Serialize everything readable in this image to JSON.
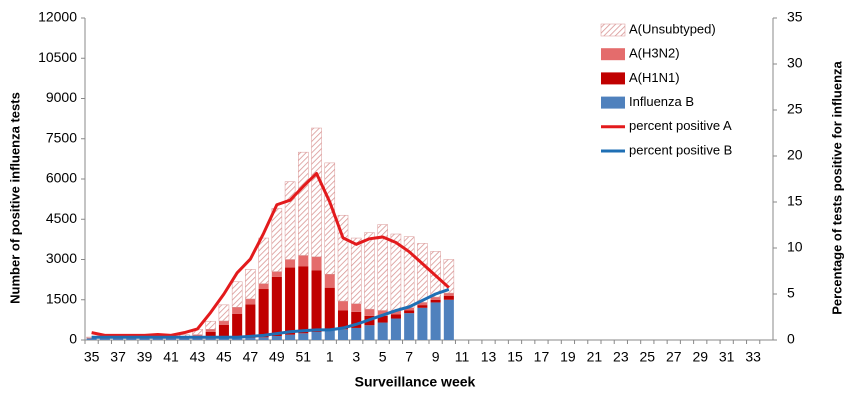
{
  "chart_data": {
    "type": "bar",
    "x_label": "Surveillance  week",
    "y_label": "Number of positive influenza tests",
    "y2_label": "Percentage of tests positive for influenza",
    "categories": [
      "35",
      null,
      "37",
      null,
      "39",
      null,
      "41",
      null,
      "43",
      null,
      "45",
      null,
      "47",
      null,
      "49",
      null,
      "51",
      null,
      "1",
      null,
      "3",
      null,
      "5",
      null,
      "7",
      null,
      "9",
      null,
      "11",
      null,
      "13",
      null,
      "15",
      null,
      "17",
      null,
      "19",
      null,
      "21",
      null,
      "23",
      null,
      "25",
      null,
      "27",
      null,
      "29",
      null,
      "31",
      null,
      "33",
      null
    ],
    "ylim": [
      0,
      12000
    ],
    "yticks": [
      0,
      1500,
      3000,
      4500,
      6000,
      7500,
      9000,
      10500,
      12000
    ],
    "y2lim": [
      0,
      35
    ],
    "y2ticks": [
      0,
      5,
      10,
      15,
      20,
      25,
      30,
      35
    ],
    "legend": "top-right",
    "series": [
      {
        "name": "A(Unsubtyped)",
        "type": "bar",
        "pattern": "hatch",
        "color": "#d99594",
        "values": [
          30,
          20,
          20,
          20,
          20,
          30,
          40,
          100,
          200,
          300,
          600,
          950,
          1100,
          1700,
          2350,
          2900,
          3850,
          4800,
          4150,
          3200,
          2450,
          2850,
          3200,
          2850,
          2650,
          2200,
          1700,
          1250,
          null,
          null,
          null,
          null,
          null,
          null,
          null,
          null,
          null,
          null,
          null,
          null,
          null,
          null,
          null,
          null,
          null,
          null,
          null,
          null,
          null,
          null,
          null,
          null
        ]
      },
      {
        "name": "A(H3N2)",
        "type": "bar",
        "color": "#e46c6c",
        "values": [
          10,
          10,
          10,
          10,
          10,
          10,
          10,
          20,
          50,
          100,
          150,
          250,
          200,
          200,
          200,
          300,
          400,
          500,
          500,
          350,
          300,
          250,
          200,
          150,
          100,
          100,
          100,
          100,
          null,
          null,
          null,
          null,
          null,
          null,
          null,
          null,
          null,
          null,
          null,
          null,
          null,
          null,
          null,
          null,
          null,
          null,
          null,
          null,
          null,
          null,
          null,
          null
        ]
      },
      {
        "name": "A(H1N1)",
        "type": "bar",
        "color": "#c00000",
        "values": [
          10,
          10,
          10,
          10,
          10,
          10,
          10,
          30,
          100,
          250,
          500,
          900,
          1250,
          1800,
          2200,
          2500,
          2500,
          2300,
          1600,
          700,
          600,
          350,
          250,
          150,
          100,
          100,
          100,
          150,
          null,
          null,
          null,
          null,
          null,
          null,
          null,
          null,
          null,
          null,
          null,
          null,
          null,
          null,
          null,
          null,
          null,
          null,
          null,
          null,
          null,
          null,
          null,
          null
        ]
      },
      {
        "name": "Influenza B",
        "type": "bar",
        "color": "#4f81bd",
        "values": [
          60,
          50,
          50,
          50,
          50,
          50,
          50,
          50,
          50,
          50,
          60,
          70,
          80,
          100,
          150,
          200,
          250,
          300,
          350,
          400,
          450,
          550,
          650,
          800,
          1000,
          1200,
          1400,
          1500,
          null,
          null,
          null,
          null,
          null,
          null,
          null,
          null,
          null,
          null,
          null,
          null,
          null,
          null,
          null,
          null,
          null,
          null,
          null,
          null,
          null,
          null,
          null,
          null
        ]
      },
      {
        "name": "percent positive A",
        "type": "line",
        "axis": "y2",
        "color": "#e31a1c",
        "values": [
          0.8,
          0.5,
          0.5,
          0.5,
          0.5,
          0.6,
          0.5,
          0.8,
          1.2,
          3,
          5,
          7.3,
          8.8,
          11.6,
          14.7,
          15.2,
          16.7,
          18.1,
          15,
          11.1,
          10.4,
          11,
          11.2,
          10.6,
          9.6,
          8.3,
          7,
          5.7,
          null,
          null,
          null,
          null,
          null,
          null,
          null,
          null,
          null,
          null,
          null,
          null,
          null,
          null,
          null,
          null,
          null,
          null,
          null,
          null,
          null,
          null,
          null,
          null
        ]
      },
      {
        "name": "percent positive B",
        "type": "line",
        "axis": "y2",
        "color": "#1f6fb4",
        "values": [
          0.3,
          0.3,
          0.3,
          0.3,
          0.3,
          0.3,
          0.3,
          0.3,
          0.3,
          0.3,
          0.3,
          0.3,
          0.4,
          0.5,
          0.7,
          0.9,
          1,
          1.1,
          1.1,
          1.3,
          1.7,
          2.2,
          2.7,
          3.2,
          3.6,
          4.3,
          5,
          5.5,
          null,
          null,
          null,
          null,
          null,
          null,
          null,
          null,
          null,
          null,
          null,
          null,
          null,
          null,
          null,
          null,
          null,
          null,
          null,
          null,
          null,
          null,
          null,
          null
        ]
      }
    ]
  }
}
